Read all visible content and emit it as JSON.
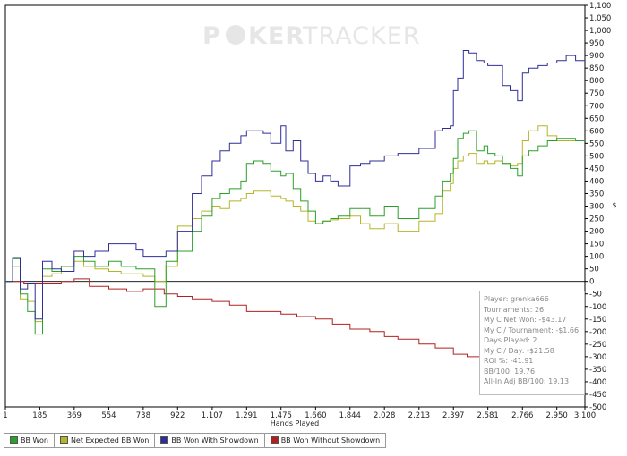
{
  "watermark": {
    "part1": "P",
    "part2": "KER",
    "part3": "TRACKER"
  },
  "chart_data": {
    "type": "line",
    "xlabel": "Hands Played",
    "ylabel": "$",
    "xlim": [
      1,
      3100
    ],
    "ylim": [
      -500,
      1100
    ],
    "y_ticks": [
      -500,
      -450,
      -400,
      -350,
      -300,
      -250,
      -200,
      -150,
      -100,
      -50,
      0,
      50,
      100,
      150,
      200,
      250,
      300,
      350,
      400,
      450,
      500,
      550,
      600,
      650,
      700,
      750,
      800,
      850,
      900,
      950,
      1000,
      1050,
      1100
    ],
    "x_ticks": [
      1,
      185,
      369,
      554,
      738,
      922,
      1107,
      1291,
      1475,
      1660,
      1844,
      2028,
      2213,
      2397,
      2581,
      2766,
      2950,
      3100
    ],
    "x_tick_labels": [
      "1",
      "185",
      "369",
      "554",
      "738",
      "922",
      "1,107",
      "1,291",
      "1,475",
      "1,660",
      "1,844",
      "2,028",
      "2,213",
      "2,397",
      "2,581",
      "2,766",
      "2,950",
      "3,100"
    ],
    "legend_placement": "bottom",
    "grid": false,
    "series": [
      {
        "name": "BB Won With Showdown",
        "color": "#2e2e9a",
        "x": [
          1,
          40,
          80,
          120,
          160,
          200,
          250,
          300,
          369,
          420,
          480,
          554,
          620,
          700,
          738,
          800,
          860,
          922,
          1000,
          1050,
          1107,
          1150,
          1200,
          1260,
          1291,
          1330,
          1380,
          1420,
          1475,
          1500,
          1540,
          1580,
          1620,
          1660,
          1700,
          1740,
          1780,
          1844,
          1900,
          1950,
          2028,
          2100,
          2213,
          2300,
          2340,
          2380,
          2397,
          2420,
          2450,
          2480,
          2520,
          2560,
          2581,
          2620,
          2660,
          2700,
          2740,
          2766,
          2800,
          2850,
          2900,
          2950,
          3000,
          3050,
          3100
        ],
        "y": [
          0,
          95,
          -30,
          -10,
          -150,
          80,
          50,
          40,
          120,
          100,
          120,
          150,
          150,
          125,
          100,
          100,
          120,
          200,
          350,
          420,
          480,
          520,
          550,
          580,
          600,
          600,
          590,
          550,
          620,
          520,
          560,
          480,
          430,
          400,
          420,
          400,
          380,
          460,
          470,
          480,
          500,
          510,
          530,
          600,
          610,
          620,
          760,
          810,
          920,
          910,
          880,
          870,
          860,
          860,
          780,
          760,
          720,
          830,
          850,
          860,
          870,
          880,
          900,
          880,
          880
        ]
      },
      {
        "name": "BB Won",
        "color": "#2aa02a",
        "x": [
          1,
          40,
          80,
          120,
          160,
          200,
          250,
          300,
          369,
          420,
          480,
          554,
          620,
          700,
          738,
          800,
          860,
          922,
          1000,
          1050,
          1107,
          1150,
          1200,
          1260,
          1291,
          1330,
          1380,
          1420,
          1475,
          1500,
          1540,
          1580,
          1620,
          1660,
          1700,
          1740,
          1780,
          1844,
          1900,
          1950,
          2028,
          2100,
          2213,
          2300,
          2340,
          2380,
          2397,
          2420,
          2450,
          2480,
          2520,
          2560,
          2581,
          2620,
          2660,
          2700,
          2740,
          2766,
          2800,
          2850,
          2900,
          2950,
          3000,
          3050,
          3100
        ],
        "y": [
          0,
          90,
          -50,
          -120,
          -210,
          50,
          40,
          60,
          100,
          80,
          60,
          80,
          60,
          50,
          50,
          -100,
          80,
          120,
          200,
          260,
          330,
          350,
          370,
          400,
          470,
          480,
          470,
          440,
          420,
          430,
          370,
          320,
          280,
          230,
          240,
          250,
          260,
          290,
          290,
          260,
          300,
          250,
          290,
          340,
          400,
          430,
          490,
          570,
          590,
          600,
          520,
          540,
          510,
          500,
          470,
          450,
          420,
          500,
          520,
          540,
          560,
          570,
          570,
          560,
          560
        ]
      },
      {
        "name": "Net Expected BB Won",
        "color": "#b5b52a",
        "x": [
          1,
          40,
          80,
          120,
          160,
          200,
          250,
          300,
          369,
          420,
          480,
          554,
          620,
          700,
          738,
          800,
          860,
          922,
          1000,
          1050,
          1107,
          1150,
          1200,
          1260,
          1291,
          1330,
          1380,
          1420,
          1475,
          1500,
          1540,
          1580,
          1620,
          1660,
          1700,
          1740,
          1780,
          1844,
          1900,
          1950,
          2028,
          2100,
          2213,
          2300,
          2340,
          2380,
          2397,
          2420,
          2450,
          2480,
          2520,
          2560,
          2581,
          2620,
          2660,
          2700,
          2740,
          2766,
          2800,
          2850,
          2900,
          2950,
          3000,
          3050,
          3100
        ],
        "y": [
          0,
          60,
          -70,
          -80,
          -160,
          20,
          30,
          60,
          80,
          60,
          50,
          40,
          30,
          30,
          20,
          0,
          60,
          220,
          250,
          280,
          300,
          290,
          320,
          330,
          350,
          360,
          360,
          340,
          330,
          320,
          300,
          280,
          240,
          230,
          240,
          245,
          250,
          260,
          230,
          210,
          230,
          200,
          240,
          270,
          360,
          390,
          450,
          480,
          500,
          510,
          470,
          480,
          470,
          480,
          470,
          460,
          470,
          560,
          600,
          620,
          580,
          560,
          560,
          560,
          560
        ]
      },
      {
        "name": "BB Won Without Showdown",
        "color": "#b02020",
        "x": [
          1,
          100,
          200,
          300,
          369,
          450,
          554,
          650,
          738,
          850,
          922,
          1000,
          1107,
          1200,
          1291,
          1400,
          1475,
          1560,
          1660,
          1750,
          1844,
          1950,
          2028,
          2100,
          2213,
          2300,
          2397,
          2470,
          2581,
          2700,
          2766,
          2850,
          2950,
          3050,
          3100
        ],
        "y": [
          0,
          -10,
          -10,
          0,
          10,
          -20,
          -30,
          -40,
          -30,
          -50,
          -60,
          -70,
          -80,
          -95,
          -120,
          -120,
          -130,
          -140,
          -150,
          -170,
          -190,
          -200,
          -220,
          -230,
          -250,
          -265,
          -290,
          -300,
          -280,
          -295,
          -300,
          -310,
          -310,
          -320,
          -320
        ]
      }
    ]
  },
  "legend": [
    {
      "label": "BB Won",
      "color": "#2aa02a"
    },
    {
      "label": "Net Expected BB Won",
      "color": "#b5b52a"
    },
    {
      "label": "BB Won With Showdown",
      "color": "#2e2e9a"
    },
    {
      "label": "BB Won Without Showdown",
      "color": "#b02020"
    }
  ],
  "stats": {
    "player": "Player: grenka666",
    "tournaments": "Tournaments: 26",
    "net_won": "My C Net Won: -$43.17",
    "per_tournament": "My C / Tournament: -$1.66",
    "days_played": "Days Played: 2",
    "per_day": "My C / Day: -$21.58",
    "roi": "ROI %: -41.91",
    "bb100": "BB/100: 19.76",
    "allin_bb100": "All-In Adj BB/100: 19.13"
  }
}
